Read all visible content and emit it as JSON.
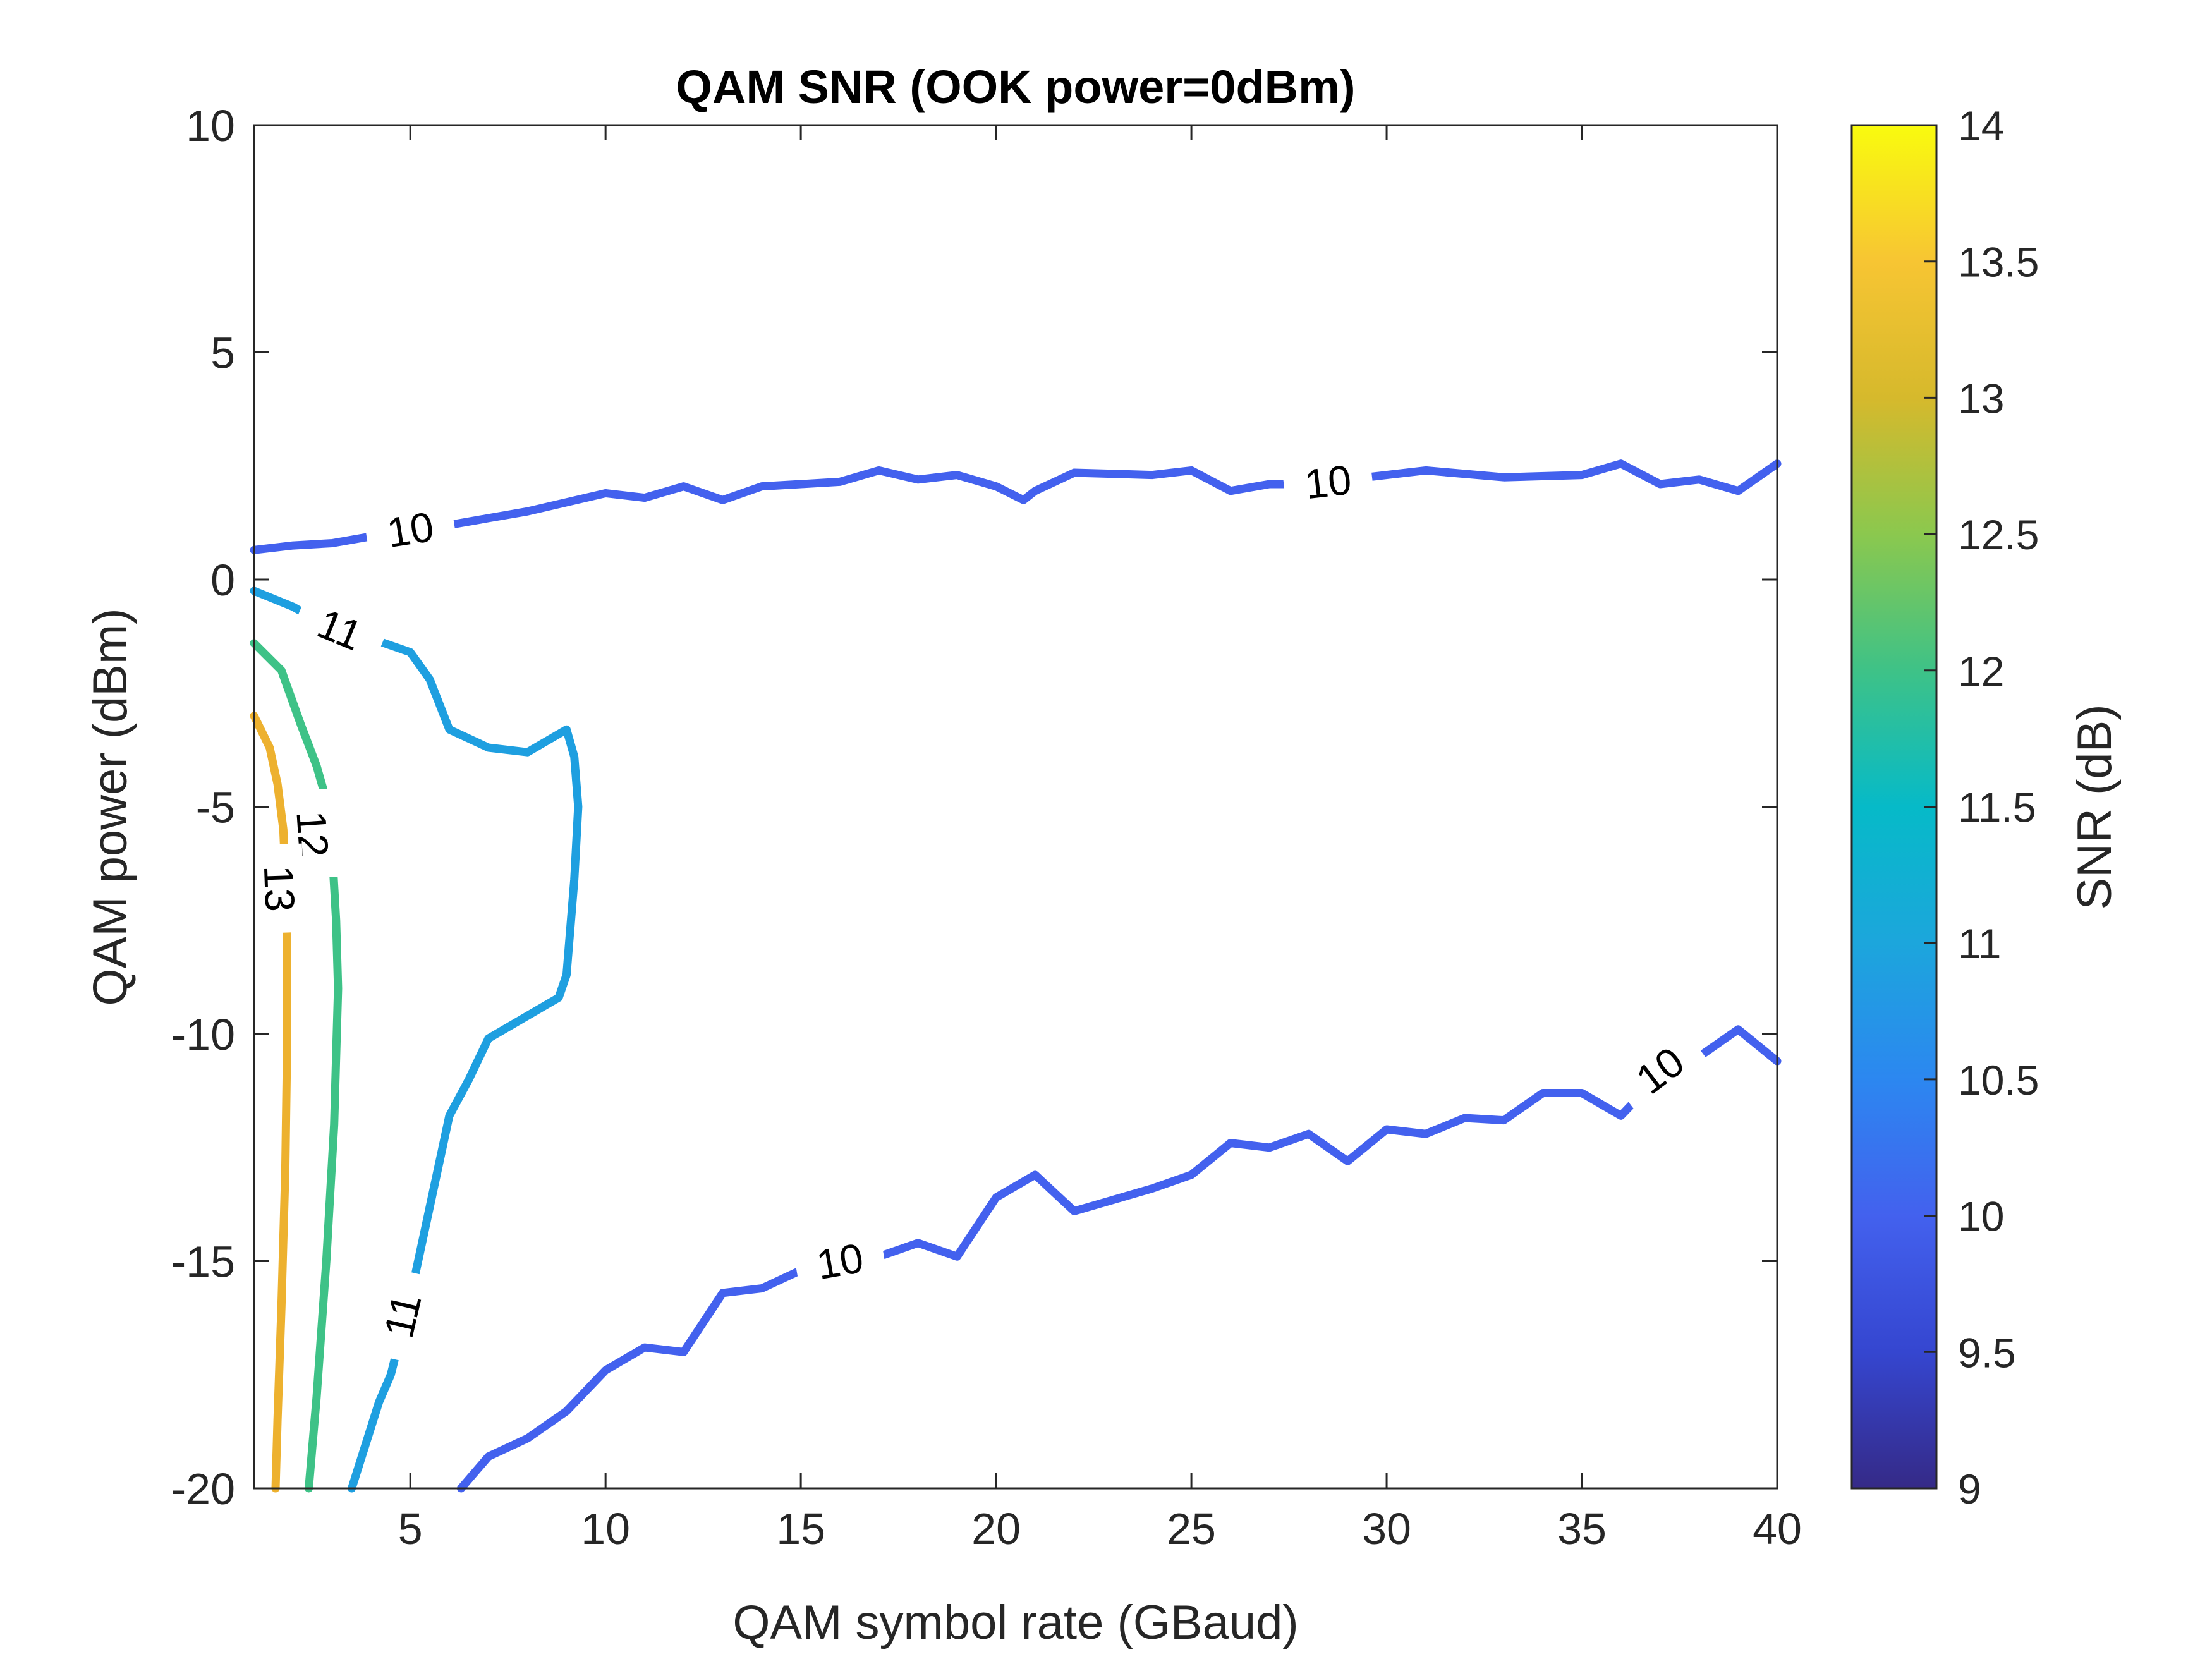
{
  "chart_data": {
    "type": "contour",
    "title": "QAM SNR (OOK power=0dBm)",
    "xlabel": "QAM symbol rate (GBaud)",
    "ylabel": "QAM power (dBm)",
    "xlim": [
      1,
      40
    ],
    "ylim": [
      -20,
      10
    ],
    "xticks": [
      5,
      10,
      15,
      20,
      25,
      30,
      35,
      40
    ],
    "xtick_labels": [
      "5",
      "10",
      "15",
      "20",
      "25",
      "30",
      "35",
      "40"
    ],
    "yticks": [
      -20,
      -15,
      -10,
      -5,
      0,
      5,
      10
    ],
    "ytick_labels": [
      "-20",
      "-15",
      "-10",
      "-5",
      "0",
      "5",
      "10"
    ],
    "grid": false,
    "colorbar": {
      "label": "SNR (dB)",
      "range": [
        9,
        14
      ],
      "ticks": [
        9,
        9.5,
        10,
        10.5,
        11,
        11.5,
        12,
        12.5,
        13,
        13.5,
        14
      ],
      "tick_labels": [
        "9",
        "9.5",
        "10",
        "10.5",
        "11",
        "11.5",
        "12",
        "12.5",
        "13",
        "13.5",
        "14"
      ]
    },
    "contours": [
      {
        "level": 10,
        "label": "10",
        "color": "#4361ee",
        "points": [
          [
            1,
            0.65
          ],
          [
            2,
            0.75
          ],
          [
            3,
            0.8
          ],
          [
            5,
            1.1
          ],
          [
            6,
            1.2
          ],
          [
            7,
            1.35
          ],
          [
            8,
            1.5
          ],
          [
            9,
            1.7
          ],
          [
            10,
            1.9
          ],
          [
            11,
            1.8
          ],
          [
            12,
            2.05
          ],
          [
            13,
            1.75
          ],
          [
            14,
            2.05
          ],
          [
            15,
            2.1
          ],
          [
            16,
            2.15
          ],
          [
            17,
            2.4
          ],
          [
            18,
            2.2
          ],
          [
            19,
            2.3
          ],
          [
            20,
            2.05
          ],
          [
            20.7,
            1.75
          ],
          [
            21,
            1.95
          ],
          [
            22,
            2.35
          ],
          [
            24,
            2.3
          ],
          [
            25,
            2.4
          ],
          [
            26,
            1.95
          ],
          [
            27,
            2.1
          ],
          [
            28,
            2.1
          ],
          [
            29,
            2.2
          ],
          [
            30,
            2.3
          ],
          [
            31,
            2.4
          ],
          [
            33,
            2.25
          ],
          [
            35,
            2.3
          ],
          [
            36,
            2.55
          ],
          [
            37,
            2.1
          ],
          [
            38,
            2.2
          ],
          [
            39,
            1.95
          ],
          [
            40,
            2.55
          ]
        ],
        "label_positions": [
          [
            5,
            1.1
          ],
          [
            28.5,
            2.15
          ]
        ]
      },
      {
        "level": 10,
        "label": "10",
        "color": "#4361ee",
        "points": [
          [
            6.3,
            -20
          ],
          [
            7,
            -19.3
          ],
          [
            8,
            -18.9
          ],
          [
            9,
            -18.3
          ],
          [
            10,
            -17.4
          ],
          [
            11,
            -16.9
          ],
          [
            12,
            -17
          ],
          [
            13,
            -15.7
          ],
          [
            14,
            -15.6
          ],
          [
            15,
            -15.2
          ],
          [
            16,
            -15.0
          ],
          [
            17,
            -14.9
          ],
          [
            18,
            -14.6
          ],
          [
            19,
            -14.9
          ],
          [
            20,
            -13.6
          ],
          [
            21,
            -13.1
          ],
          [
            22,
            -13.9
          ],
          [
            24,
            -13.4
          ],
          [
            25,
            -13.1
          ],
          [
            26,
            -12.4
          ],
          [
            27,
            -12.5
          ],
          [
            28,
            -12.2
          ],
          [
            29,
            -12.8
          ],
          [
            30,
            -12.1
          ],
          [
            31,
            -12.2
          ],
          [
            32,
            -11.85
          ],
          [
            33,
            -11.9
          ],
          [
            34,
            -11.3
          ],
          [
            35,
            -11.3
          ],
          [
            36,
            -11.8
          ],
          [
            37,
            -10.9
          ],
          [
            38,
            -10.5
          ],
          [
            39,
            -9.9
          ],
          [
            40,
            -10.6
          ]
        ],
        "label_positions": [
          [
            16,
            -15.0
          ],
          [
            37,
            -10.8
          ]
        ]
      },
      {
        "level": 11,
        "label": "11",
        "color": "#1e9fe0",
        "points": [
          [
            1,
            -0.25
          ],
          [
            2,
            -0.6
          ],
          [
            3,
            -1.1
          ],
          [
            4,
            -1.3
          ],
          [
            5,
            -1.6
          ],
          [
            5.5,
            -2.2
          ],
          [
            6,
            -3.3
          ],
          [
            7,
            -3.7
          ],
          [
            8,
            -3.8
          ],
          [
            9,
            -3.3
          ],
          [
            9.2,
            -3.9
          ],
          [
            9.3,
            -5.0
          ],
          [
            9.2,
            -6.6
          ],
          [
            9.0,
            -8.7
          ],
          [
            8.8,
            -9.2
          ],
          [
            8,
            -9.6
          ],
          [
            7,
            -10.1
          ],
          [
            6.5,
            -11
          ],
          [
            6,
            -11.8
          ],
          [
            5.5,
            -13.8
          ],
          [
            5,
            -15.8
          ],
          [
            4.5,
            -17.5
          ],
          [
            4.2,
            -18.1
          ],
          [
            3.5,
            -20
          ]
        ],
        "label_positions": [
          [
            3.2,
            -1.1
          ],
          [
            4.8,
            -16.2
          ]
        ]
      },
      {
        "level": 12,
        "label": "12",
        "color": "#3ec287",
        "points": [
          [
            1,
            -1.4
          ],
          [
            1.7,
            -2
          ],
          [
            2.2,
            -3.2
          ],
          [
            2.6,
            -4.1
          ],
          [
            2.9,
            -5.0
          ],
          [
            3.0,
            -6.0
          ],
          [
            3.1,
            -7.5
          ],
          [
            3.15,
            -9
          ],
          [
            3.05,
            -12
          ],
          [
            2.85,
            -15
          ],
          [
            2.6,
            -18
          ],
          [
            2.4,
            -20
          ]
        ],
        "label_positions": [
          [
            2.5,
            -5.6
          ]
        ]
      },
      {
        "level": 13,
        "label": "13",
        "color": "#edb12f",
        "points": [
          [
            1,
            -3.0
          ],
          [
            1.4,
            -3.7
          ],
          [
            1.6,
            -4.5
          ],
          [
            1.75,
            -5.5
          ],
          [
            1.8,
            -6.5
          ],
          [
            1.85,
            -8
          ],
          [
            1.85,
            -10
          ],
          [
            1.8,
            -13
          ],
          [
            1.7,
            -16
          ],
          [
            1.6,
            -18.5
          ],
          [
            1.55,
            -20
          ]
        ],
        "label_positions": [
          [
            1.65,
            -6.8
          ]
        ]
      }
    ]
  }
}
